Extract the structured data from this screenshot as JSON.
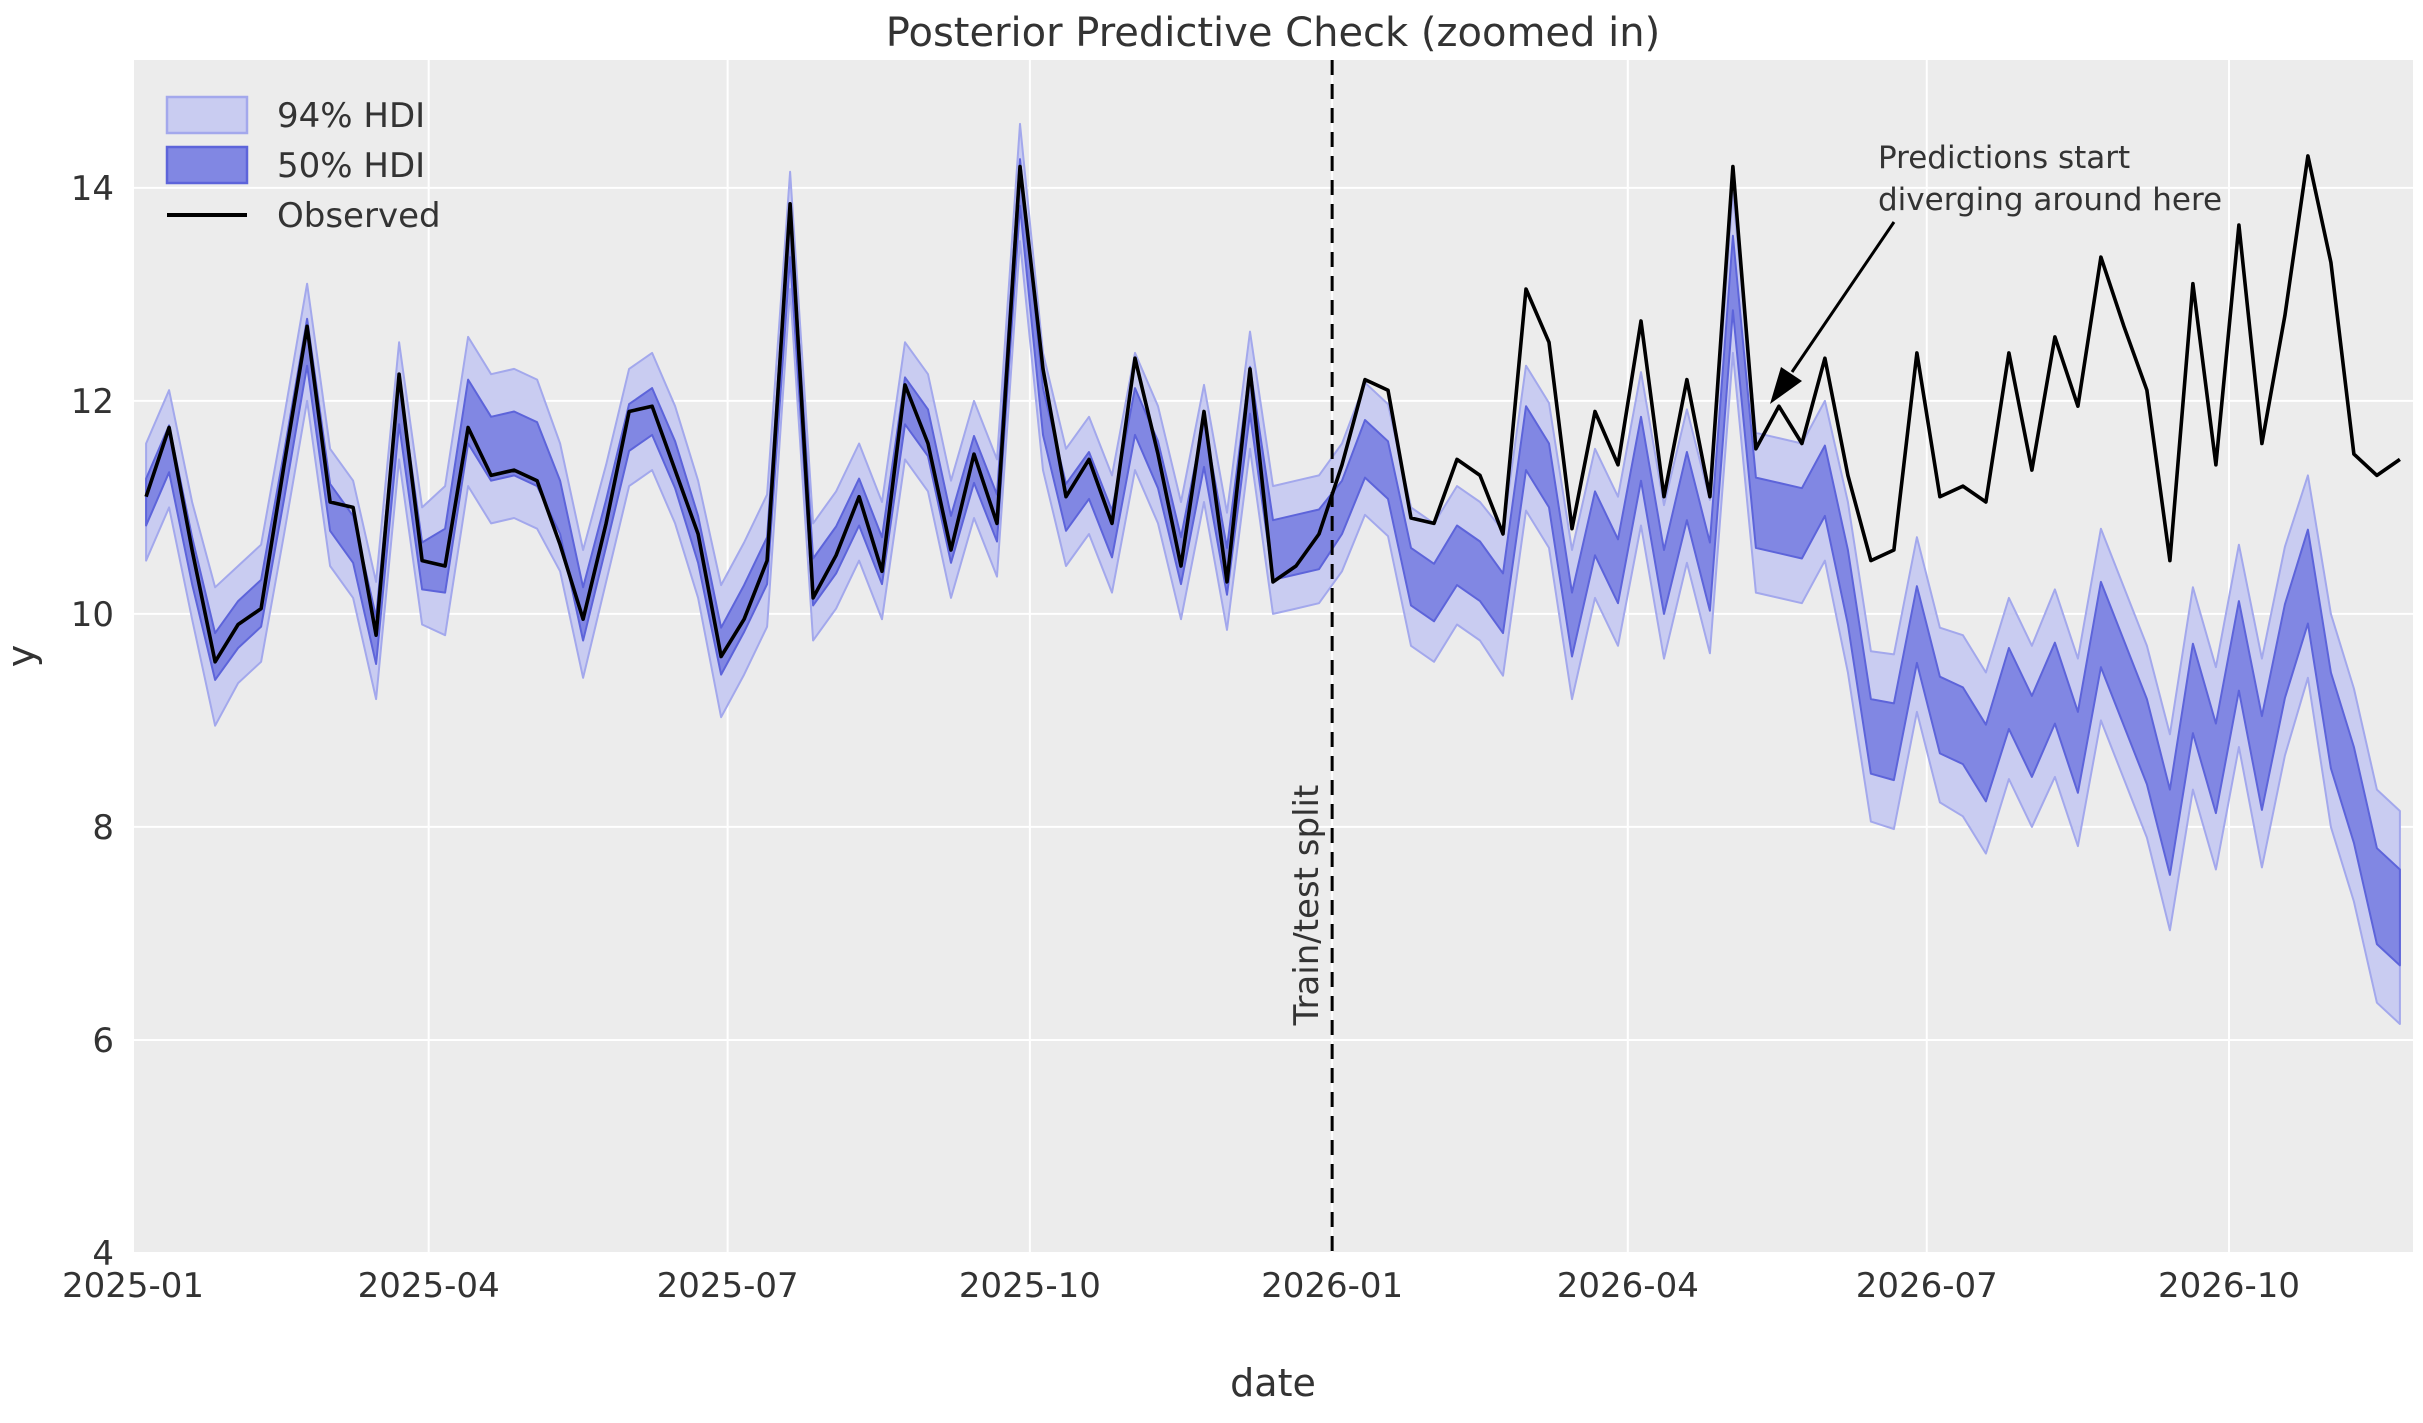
{
  "title": "Posterior Predictive Check (zoomed in)",
  "axes": {
    "xlabel": "date",
    "ylabel": "y"
  },
  "legend": {
    "hdi94_label": "94% HDI",
    "hdi50_label": "50% HDI",
    "observed_label": "Observed"
  },
  "annotation": {
    "line1": "Predictions start",
    "line2": "diverging around here"
  },
  "split": {
    "label": "Train/test split",
    "date": "2026-01-01"
  },
  "colors": {
    "figure_bg": "#ffffff",
    "axes_bg": "#ececec",
    "grid": "#ffffff",
    "observed": "#000000",
    "hdi94_fill": "#c9ccf1",
    "hdi94_edge": "#a3a8ec",
    "hdi50_fill": "#8187e3",
    "hdi50_edge": "#5d64da",
    "split_line": "#000000",
    "text": "#333333"
  },
  "chart_data": {
    "type": "line",
    "title": "Posterior Predictive Check (zoomed in)",
    "xlabel": "date",
    "ylabel": "y",
    "grid": true,
    "legend_position": "upper left",
    "ylim": [
      4,
      15.2
    ],
    "xlim": [
      "2025-01-01",
      "2026-11-26"
    ],
    "y_ticks": [
      4,
      6,
      8,
      10,
      12,
      14
    ],
    "x_ticks": [
      {
        "label": "2025-01",
        "date": "2025-01-01"
      },
      {
        "label": "2025-04",
        "date": "2025-04-01"
      },
      {
        "label": "2025-07",
        "date": "2025-07-01"
      },
      {
        "label": "2025-10",
        "date": "2025-10-01"
      },
      {
        "label": "2026-01",
        "date": "2026-01-01"
      },
      {
        "label": "2026-04",
        "date": "2026-04-01"
      },
      {
        "label": "2026-07",
        "date": "2026-07-01"
      },
      {
        "label": "2026-10",
        "date": "2026-10-01"
      }
    ],
    "dates": [
      "2025-01-05",
      "2025-01-12",
      "2025-01-19",
      "2025-01-26",
      "2025-02-02",
      "2025-02-09",
      "2025-02-16",
      "2025-02-23",
      "2025-03-02",
      "2025-03-09",
      "2025-03-16",
      "2025-03-23",
      "2025-03-30",
      "2025-04-06",
      "2025-04-13",
      "2025-04-20",
      "2025-04-27",
      "2025-05-04",
      "2025-05-11",
      "2025-05-18",
      "2025-05-25",
      "2025-06-01",
      "2025-06-08",
      "2025-06-15",
      "2025-06-22",
      "2025-06-29",
      "2025-07-06",
      "2025-07-13",
      "2025-07-20",
      "2025-07-27",
      "2025-08-03",
      "2025-08-10",
      "2025-08-17",
      "2025-08-24",
      "2025-08-31",
      "2025-09-07",
      "2025-09-14",
      "2025-09-21",
      "2025-09-28",
      "2025-10-05",
      "2025-10-12",
      "2025-10-19",
      "2025-10-26",
      "2025-11-02",
      "2025-11-09",
      "2025-11-16",
      "2025-11-23",
      "2025-11-30",
      "2025-12-07",
      "2025-12-14",
      "2025-12-21",
      "2025-12-28",
      "2026-01-04",
      "2026-01-11",
      "2026-01-18",
      "2026-01-25",
      "2026-02-01",
      "2026-02-08",
      "2026-02-15",
      "2026-02-22",
      "2026-03-01",
      "2026-03-08",
      "2026-03-15",
      "2026-03-22",
      "2026-03-29",
      "2026-04-05",
      "2026-04-12",
      "2026-04-19",
      "2026-04-26",
      "2026-05-03",
      "2026-05-10",
      "2026-05-17",
      "2026-05-24",
      "2026-05-31",
      "2026-06-07",
      "2026-06-14",
      "2026-06-21",
      "2026-06-28",
      "2026-07-05",
      "2026-07-12",
      "2026-07-19",
      "2026-07-26",
      "2026-08-02",
      "2026-08-09",
      "2026-08-16",
      "2026-08-23",
      "2026-08-30",
      "2026-09-06",
      "2026-09-13",
      "2026-09-20",
      "2026-09-27",
      "2026-10-04",
      "2026-10-11",
      "2026-10-18",
      "2026-10-25",
      "2026-11-01",
      "2026-11-08",
      "2026-11-15",
      "2026-11-22"
    ],
    "series": [
      {
        "name": "Observed",
        "values": [
          11.1,
          11.75,
          10.6,
          9.55,
          9.9,
          10.05,
          11.4,
          12.7,
          11.05,
          11.0,
          9.8,
          12.25,
          10.5,
          10.45,
          11.75,
          11.3,
          11.35,
          11.25,
          10.65,
          9.95,
          10.85,
          11.9,
          11.95,
          11.35,
          10.75,
          9.6,
          9.95,
          10.5,
          13.85,
          10.15,
          10.55,
          11.1,
          10.4,
          12.15,
          11.6,
          10.6,
          11.5,
          10.85,
          14.2,
          12.3,
          11.1,
          11.45,
          10.85,
          12.4,
          11.5,
          10.45,
          11.9,
          10.3,
          12.3,
          10.3,
          10.45,
          10.75,
          11.4,
          12.2,
          12.1,
          10.9,
          10.85,
          11.45,
          11.3,
          10.75,
          13.05,
          12.55,
          10.8,
          11.9,
          11.4,
          12.75,
          11.1,
          12.2,
          11.1,
          14.2,
          11.55,
          11.95,
          11.6,
          12.4,
          11.3,
          10.5,
          10.6,
          12.45,
          11.1,
          11.2,
          11.05,
          12.45,
          11.35,
          12.6,
          11.95,
          13.35,
          12.7,
          12.1,
          10.5,
          13.1,
          11.4,
          13.65,
          11.6,
          12.8,
          14.3,
          13.3,
          11.5,
          11.3,
          11.45
        ]
      },
      {
        "name": "94% HDI",
        "lo": [
          10.5,
          11.0,
          9.95,
          8.95,
          9.35,
          9.55,
          10.75,
          12.0,
          10.45,
          10.15,
          9.2,
          11.45,
          9.9,
          9.8,
          11.2,
          10.85,
          10.9,
          10.8,
          10.4,
          9.4,
          10.3,
          11.2,
          11.35,
          10.85,
          10.15,
          9.03,
          9.43,
          9.88,
          13.05,
          9.75,
          10.05,
          10.5,
          9.95,
          11.45,
          11.15,
          10.15,
          10.9,
          10.35,
          13.5,
          11.35,
          10.45,
          10.75,
          10.2,
          11.35,
          10.85,
          9.95,
          11.05,
          9.85,
          11.55,
          10.0,
          10.05,
          10.1,
          10.4,
          10.93,
          10.73,
          9.7,
          9.55,
          9.9,
          9.75,
          9.42,
          10.97,
          10.62,
          9.2,
          10.15,
          9.7,
          10.83,
          9.58,
          10.48,
          9.63,
          12.45,
          10.2,
          10.15,
          10.1,
          10.5,
          9.45,
          8.05,
          7.98,
          9.08,
          8.23,
          8.1,
          7.75,
          8.45,
          8.0,
          8.47,
          7.82,
          9.0,
          8.45,
          7.9,
          7.03,
          8.35,
          7.6,
          8.75,
          7.62,
          8.67,
          9.4,
          8.0,
          7.3,
          6.35,
          6.15
        ],
        "hi": [
          11.6,
          12.1,
          11.05,
          10.25,
          10.45,
          10.65,
          11.85,
          13.1,
          11.55,
          11.25,
          10.3,
          12.55,
          11.0,
          11.2,
          12.6,
          12.25,
          12.3,
          12.2,
          11.6,
          10.6,
          11.4,
          12.3,
          12.45,
          11.95,
          11.25,
          10.27,
          10.67,
          11.12,
          14.15,
          10.85,
          11.15,
          11.6,
          11.05,
          12.55,
          12.25,
          11.25,
          12.0,
          11.45,
          14.6,
          12.45,
          11.55,
          11.85,
          11.3,
          12.45,
          11.95,
          11.05,
          12.15,
          10.95,
          12.65,
          11.2,
          11.25,
          11.3,
          11.6,
          12.17,
          11.97,
          11.0,
          10.85,
          11.2,
          11.05,
          10.78,
          12.33,
          11.98,
          10.6,
          11.55,
          11.1,
          12.27,
          11.02,
          11.92,
          11.07,
          13.95,
          11.7,
          11.65,
          11.6,
          12.0,
          11.05,
          9.65,
          9.62,
          10.72,
          9.87,
          9.8,
          9.45,
          10.15,
          9.7,
          10.23,
          9.58,
          10.8,
          10.25,
          9.7,
          8.87,
          10.25,
          9.5,
          10.65,
          9.58,
          10.63,
          11.3,
          10.0,
          9.3,
          8.35,
          8.15
        ]
      },
      {
        "name": "50% HDI",
        "lo": [
          10.83,
          11.33,
          10.28,
          9.38,
          9.68,
          9.88,
          11.08,
          12.33,
          10.78,
          10.48,
          9.53,
          11.78,
          10.23,
          10.2,
          11.6,
          11.25,
          11.3,
          11.2,
          10.75,
          9.75,
          10.63,
          11.53,
          11.68,
          11.18,
          10.48,
          9.43,
          9.83,
          10.28,
          13.35,
          10.08,
          10.38,
          10.83,
          10.28,
          11.78,
          11.48,
          10.48,
          11.23,
          10.68,
          13.83,
          11.68,
          10.78,
          11.08,
          10.53,
          11.68,
          11.18,
          10.28,
          11.38,
          10.18,
          11.88,
          10.32,
          10.37,
          10.42,
          10.75,
          11.28,
          11.08,
          10.08,
          9.93,
          10.27,
          10.12,
          9.82,
          11.35,
          11.0,
          9.6,
          10.55,
          10.1,
          11.25,
          10.0,
          10.88,
          10.03,
          12.85,
          10.62,
          10.57,
          10.52,
          10.92,
          9.9,
          8.5,
          8.44,
          9.54,
          8.69,
          8.59,
          8.24,
          8.92,
          8.47,
          8.97,
          8.32,
          9.5,
          8.95,
          8.4,
          7.55,
          8.88,
          8.13,
          9.28,
          8.16,
          9.21,
          9.91,
          8.55,
          7.85,
          6.9,
          6.7
        ],
        "hi": [
          11.27,
          11.77,
          10.72,
          9.82,
          10.12,
          10.32,
          11.52,
          12.77,
          11.22,
          10.92,
          9.97,
          12.22,
          10.67,
          10.8,
          12.2,
          11.85,
          11.9,
          11.8,
          11.25,
          10.25,
          11.07,
          11.97,
          12.12,
          11.62,
          10.92,
          9.87,
          10.27,
          10.72,
          13.85,
          10.52,
          10.82,
          11.27,
          10.72,
          12.22,
          11.92,
          10.92,
          11.67,
          11.12,
          14.27,
          12.12,
          11.22,
          11.52,
          10.97,
          12.12,
          11.62,
          10.72,
          11.82,
          10.62,
          12.32,
          10.88,
          10.93,
          10.98,
          11.25,
          11.82,
          11.62,
          10.62,
          10.47,
          10.83,
          10.68,
          10.38,
          11.95,
          11.6,
          10.2,
          11.15,
          10.7,
          11.85,
          10.6,
          11.52,
          10.67,
          13.55,
          11.28,
          11.23,
          11.18,
          11.58,
          10.6,
          9.2,
          9.16,
          10.26,
          9.41,
          9.31,
          8.96,
          9.68,
          9.23,
          9.73,
          9.08,
          10.3,
          9.75,
          9.2,
          8.35,
          9.72,
          8.97,
          10.12,
          9.04,
          10.09,
          10.79,
          9.45,
          8.75,
          7.8,
          7.6
        ]
      }
    ]
  }
}
